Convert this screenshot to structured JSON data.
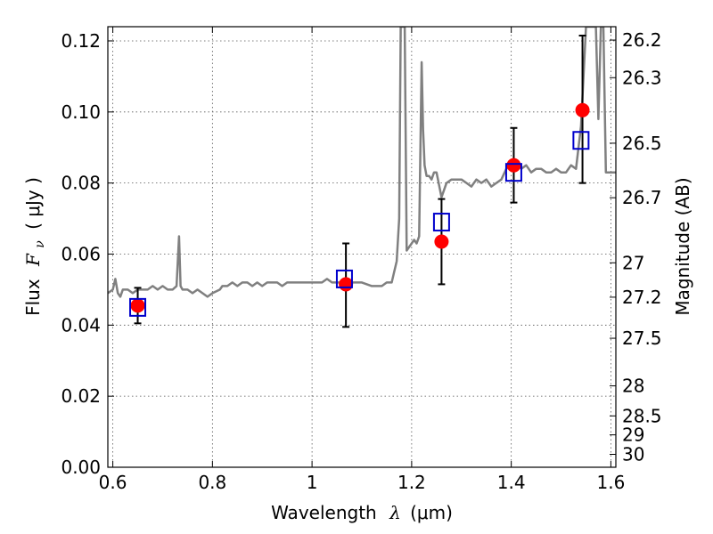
{
  "chart_data": {
    "type": "scatter",
    "xlabel": "Wavelength",
    "xlabel_symbol": "λ",
    "xlabel_unit": "(μm)",
    "ylabel": "Flux",
    "ylabel_symbol": "F",
    "ylabel_subscript": "ν",
    "ylabel_unit": "( μJy )",
    "y2label": "Magnitude (AB)",
    "xlim": [
      0.59,
      1.61
    ],
    "ylim": [
      0.0,
      0.124
    ],
    "grid": true,
    "x_ticks": [
      {
        "value": 0.6,
        "label": "0.6"
      },
      {
        "value": 0.8,
        "label": "0.8"
      },
      {
        "value": 1.0,
        "label": "1"
      },
      {
        "value": 1.2,
        "label": "1.2"
      },
      {
        "value": 1.4,
        "label": "1.4"
      },
      {
        "value": 1.6,
        "label": "1.6"
      }
    ],
    "y_ticks": [
      {
        "value": 0.0,
        "label": "0.00"
      },
      {
        "value": 0.02,
        "label": "0.02"
      },
      {
        "value": 0.04,
        "label": "0.04"
      },
      {
        "value": 0.06,
        "label": "0.06"
      },
      {
        "value": 0.08,
        "label": "0.08"
      },
      {
        "value": 0.1,
        "label": "0.10"
      },
      {
        "value": 0.12,
        "label": "0.12"
      }
    ],
    "y2_ticks": [
      {
        "value": 26.2,
        "label": "26.2"
      },
      {
        "value": 26.3,
        "label": "26.3"
      },
      {
        "value": 26.5,
        "label": "26.5"
      },
      {
        "value": 26.7,
        "label": "26.7"
      },
      {
        "value": 27.0,
        "label": "27"
      },
      {
        "value": 27.2,
        "label": "27.2"
      },
      {
        "value": 27.5,
        "label": "27.5"
      },
      {
        "value": 28.0,
        "label": "28"
      },
      {
        "value": 28.5,
        "label": "28.5"
      },
      {
        "value": 29.0,
        "label": "29"
      },
      {
        "value": 30.0,
        "label": "30"
      }
    ],
    "series": [
      {
        "kind": "line",
        "color": "#808080",
        "x": [
          0.59,
          0.6,
          0.605,
          0.61,
          0.615,
          0.62,
          0.63,
          0.64,
          0.65,
          0.66,
          0.67,
          0.68,
          0.69,
          0.7,
          0.71,
          0.72,
          0.728,
          0.733,
          0.736,
          0.74,
          0.75,
          0.76,
          0.77,
          0.78,
          0.79,
          0.8,
          0.815,
          0.82,
          0.83,
          0.84,
          0.85,
          0.86,
          0.87,
          0.88,
          0.89,
          0.9,
          0.91,
          0.92,
          0.93,
          0.94,
          0.95,
          0.96,
          0.97,
          0.98,
          0.99,
          1.0,
          1.01,
          1.02,
          1.03,
          1.04,
          1.05,
          1.06,
          1.08,
          1.1,
          1.12,
          1.14,
          1.15,
          1.16,
          1.165,
          1.17,
          1.175,
          1.178,
          1.182,
          1.186,
          1.19,
          1.195,
          1.2,
          1.205,
          1.21,
          1.215,
          1.22,
          1.223,
          1.226,
          1.23,
          1.235,
          1.24,
          1.245,
          1.25,
          1.26,
          1.27,
          1.28,
          1.29,
          1.3,
          1.31,
          1.32,
          1.33,
          1.34,
          1.35,
          1.36,
          1.37,
          1.38,
          1.39,
          1.4,
          1.41,
          1.42,
          1.43,
          1.44,
          1.45,
          1.46,
          1.47,
          1.48,
          1.49,
          1.5,
          1.51,
          1.52,
          1.53,
          1.54,
          1.55,
          1.56,
          1.57,
          1.575,
          1.58,
          1.585,
          1.59,
          1.6,
          1.61
        ],
        "y": [
          0.049,
          0.05,
          0.053,
          0.049,
          0.048,
          0.05,
          0.05,
          0.049,
          0.05,
          0.05,
          0.05,
          0.051,
          0.05,
          0.051,
          0.05,
          0.05,
          0.051,
          0.065,
          0.051,
          0.05,
          0.05,
          0.049,
          0.05,
          0.049,
          0.048,
          0.049,
          0.05,
          0.051,
          0.051,
          0.052,
          0.051,
          0.052,
          0.052,
          0.051,
          0.052,
          0.051,
          0.052,
          0.052,
          0.052,
          0.051,
          0.052,
          0.052,
          0.052,
          0.052,
          0.052,
          0.052,
          0.052,
          0.052,
          0.053,
          0.052,
          0.052,
          0.052,
          0.052,
          0.052,
          0.051,
          0.051,
          0.052,
          0.052,
          0.055,
          0.058,
          0.07,
          0.124,
          0.124,
          0.124,
          0.061,
          0.062,
          0.063,
          0.064,
          0.063,
          0.065,
          0.114,
          0.095,
          0.085,
          0.082,
          0.082,
          0.081,
          0.083,
          0.083,
          0.076,
          0.08,
          0.081,
          0.081,
          0.081,
          0.08,
          0.079,
          0.081,
          0.08,
          0.081,
          0.079,
          0.08,
          0.081,
          0.084,
          0.085,
          0.086,
          0.084,
          0.085,
          0.083,
          0.084,
          0.084,
          0.083,
          0.083,
          0.084,
          0.083,
          0.083,
          0.085,
          0.084,
          0.096,
          0.124,
          0.124,
          0.124,
          0.098,
          0.124,
          0.124,
          0.083,
          0.083,
          0.083
        ]
      },
      {
        "kind": "squares",
        "color": "#0000cc",
        "x": [
          0.65,
          1.065,
          1.26,
          1.405,
          1.54
        ],
        "y": [
          0.045,
          0.053,
          0.069,
          0.083,
          0.092
        ]
      },
      {
        "kind": "points_with_errors",
        "color": "#ff0000",
        "error_color": "#000000",
        "x": [
          0.65,
          1.068,
          1.26,
          1.405,
          1.543
        ],
        "y": [
          0.0455,
          0.0515,
          0.0635,
          0.085,
          0.1005
        ],
        "err_low": [
          0.005,
          0.012,
          0.012,
          0.0105,
          0.0205
        ],
        "err_high": [
          0.005,
          0.0115,
          0.012,
          0.0105,
          0.021
        ]
      }
    ]
  }
}
